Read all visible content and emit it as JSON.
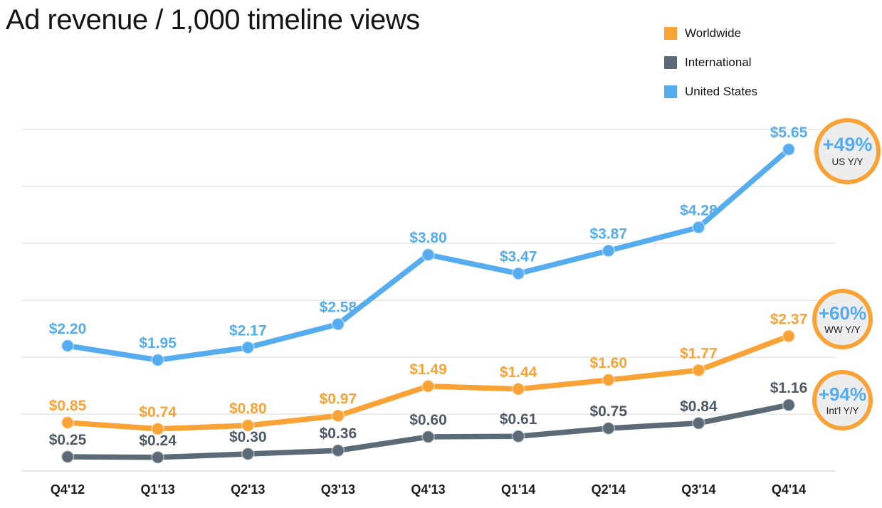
{
  "chart_data": {
    "type": "line",
    "title": "Ad revenue / 1,000 timeline views",
    "categories": [
      "Q4'12",
      "Q1'13",
      "Q2'13",
      "Q3'13",
      "Q4'13",
      "Q1'14",
      "Q2'14",
      "Q3'14",
      "Q4'14"
    ],
    "series": [
      {
        "name": "Worldwide",
        "color": "#F9A236",
        "label_color": "#F9A236",
        "values": [
          0.85,
          0.74,
          0.8,
          0.97,
          1.49,
          1.44,
          1.6,
          1.77,
          2.37
        ],
        "labels": [
          "$0.85",
          "$0.74",
          "$0.80",
          "$0.97",
          "$1.49",
          "$1.44",
          "$1.60",
          "$1.77",
          "$2.37"
        ]
      },
      {
        "name": "International",
        "color": "#5B6A76",
        "label_color": "#4D5A65",
        "values": [
          0.25,
          0.24,
          0.3,
          0.36,
          0.6,
          0.61,
          0.75,
          0.84,
          1.16
        ],
        "labels": [
          "$0.25",
          "$0.24",
          "$0.30",
          "$0.36",
          "$0.60",
          "$0.61",
          "$0.75",
          "$0.84",
          "$1.16"
        ]
      },
      {
        "name": "United States",
        "color": "#55ACEE",
        "label_color": "#55ACEE",
        "values": [
          2.2,
          1.95,
          2.17,
          2.58,
          3.8,
          3.47,
          3.87,
          4.28,
          5.65
        ],
        "labels": [
          "$2.20",
          "$1.95",
          "$2.17",
          "$2.58",
          "$3.80",
          "$3.47",
          "$3.87",
          "$4.28",
          "$5.65"
        ]
      }
    ],
    "xlabel": "",
    "ylabel": "",
    "ylim": [
      0,
      6.6
    ],
    "y_grid_interval": 1,
    "grid": "horizontal gridlines at $1 intervals, no y tick labels",
    "legend_position": "top-right"
  },
  "badges": [
    {
      "pct": "+49%",
      "label": "US Y/Y"
    },
    {
      "pct": "+60%",
      "label": "WW Y/Y"
    },
    {
      "pct": "+94%",
      "label": "Int'l Y/Y"
    }
  ],
  "colors": {
    "worldwide_orange": "#F9A236",
    "international_gray": "#5B6A76",
    "us_blue": "#55ACEE",
    "gridline": "#D8D8D8",
    "axis": "#CFCFCF",
    "badge_fill": "#EDEDED",
    "badge_ring": "#F9A236",
    "badge_pct": "#55ACEE",
    "badge_label": "#222222",
    "title_text": "#151515",
    "axis_label": "#1B1B1B"
  }
}
